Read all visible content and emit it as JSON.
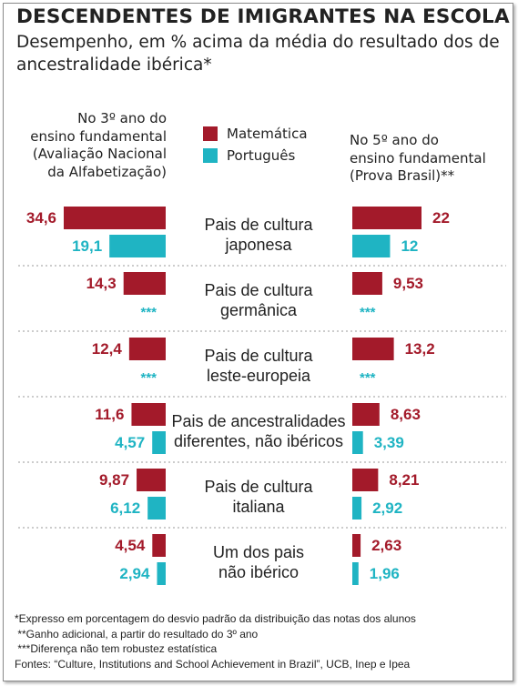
{
  "header": {
    "title": "DESCENDENTES DE IMIGRANTES NA ESCOLA",
    "subtitle": "Desempenho, em % acima da média do resultado dos de ancestralidade ibérica*"
  },
  "left_column_header": [
    "No 3º ano do",
    "ensino fundamental",
    "(Avaliação Nacional",
    "da Alfabetização)"
  ],
  "right_column_header": [
    "No 5º ano do",
    "ensino fundamental",
    "(Prova Brasil)**"
  ],
  "legend": [
    {
      "name": "Matemática",
      "color": "#a31a2a"
    },
    {
      "name": "Português",
      "color": "#1fb4c3"
    }
  ],
  "colors": {
    "matematica": "#a31a2a",
    "portugues": "#1fb4c3",
    "divider": "#9a9a9a",
    "text": "#222222"
  },
  "chart_data": [
    {
      "type": "bar",
      "orientation": "horizontal",
      "panel": "No 3º ano do ensino fundamental (Avaliação Nacional da Alfabetização)",
      "categories": [
        "Pais de cultura japonesa",
        "Pais de cultura germânica",
        "Pais de cultura leste-europeia",
        "Pais de ancestralidades diferentes, não ibéricos",
        "Pais de cultura italiana",
        "Um dos pais não ibérico"
      ],
      "series": [
        {
          "name": "Matemática",
          "values": [
            34.6,
            14.3,
            12.4,
            11.6,
            9.87,
            4.54
          ],
          "labels": [
            "34,6",
            "14,3",
            "12,4",
            "11,6",
            "9,87",
            "4,54"
          ]
        },
        {
          "name": "Português",
          "values": [
            19.1,
            null,
            null,
            4.57,
            6.12,
            2.94
          ],
          "labels": [
            "19,1",
            "***",
            "***",
            "4,57",
            "6,12",
            "2,94"
          ]
        }
      ]
    },
    {
      "type": "bar",
      "orientation": "horizontal",
      "panel": "No 5º ano do ensino fundamental (Prova Brasil)**",
      "categories": [
        "Pais de cultura japonesa",
        "Pais de cultura germânica",
        "Pais de cultura leste-europeia",
        "Pais de ancestralidades diferentes, não ibéricos",
        "Pais de cultura italiana",
        "Um dos pais não ibérico"
      ],
      "series": [
        {
          "name": "Matemática",
          "values": [
            22,
            9.53,
            13.2,
            8.63,
            8.21,
            2.63
          ],
          "labels": [
            "22",
            "9,53",
            "13,2",
            "8,63",
            "8,21",
            "2,63"
          ]
        },
        {
          "name": "Português",
          "values": [
            12,
            null,
            null,
            3.39,
            2.92,
            1.96
          ],
          "labels": [
            "12",
            "***",
            "***",
            "3,39",
            "2,92",
            "1,96"
          ]
        }
      ]
    }
  ],
  "category_labels": [
    [
      "Pais de cultura",
      "japonesa"
    ],
    [
      "Pais de cultura",
      "germânica"
    ],
    [
      "Pais de cultura",
      "leste-europeia"
    ],
    [
      "Pais de ancestralidades",
      "diferentes, não ibéricos"
    ],
    [
      "Pais de cultura",
      "italiana"
    ],
    [
      "Um dos pais",
      "não ibérico"
    ]
  ],
  "notes": [
    "*Expresso em porcentagem do desvio padrão da distribuição das notas dos alunos",
    " **Ganho adicional, a partir do resultado do 3º ano",
    " ***Diferença não tem robustez estatística",
    "Fontes: “Culture, Institutions and School Achievement in Brazil”, UCB, Inep e Ipea"
  ]
}
